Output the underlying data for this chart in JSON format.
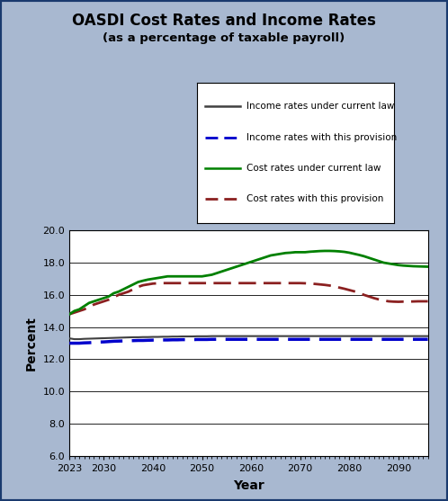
{
  "title": "OASDI Cost Rates and Income Rates",
  "subtitle": "(as a percentage of taxable payroll)",
  "xlabel": "Year",
  "ylabel": "Percent",
  "bg_color": "#a8b8d0",
  "plot_bg_color": "#ffffff",
  "border_color": "#1a3a6e",
  "ylim": [
    6.0,
    20.0
  ],
  "yticks": [
    6.0,
    8.0,
    10.0,
    12.0,
    14.0,
    16.0,
    18.0,
    20.0
  ],
  "xticks": [
    2023,
    2030,
    2040,
    2050,
    2060,
    2070,
    2080,
    2090
  ],
  "years": [
    2023,
    2024,
    2025,
    2026,
    2027,
    2028,
    2029,
    2030,
    2031,
    2032,
    2033,
    2034,
    2035,
    2036,
    2037,
    2038,
    2039,
    2040,
    2041,
    2042,
    2043,
    2044,
    2045,
    2046,
    2047,
    2048,
    2049,
    2050,
    2051,
    2052,
    2053,
    2054,
    2055,
    2056,
    2057,
    2058,
    2059,
    2060,
    2061,
    2062,
    2063,
    2064,
    2065,
    2066,
    2067,
    2068,
    2069,
    2070,
    2071,
    2072,
    2073,
    2074,
    2075,
    2076,
    2077,
    2078,
    2079,
    2080,
    2081,
    2082,
    2083,
    2084,
    2085,
    2086,
    2087,
    2088,
    2089,
    2090,
    2091,
    2092,
    2093,
    2094,
    2095,
    2096
  ],
  "income_current_law": [
    13.3,
    13.25,
    13.25,
    13.27,
    13.28,
    13.29,
    13.3,
    13.31,
    13.32,
    13.33,
    13.34,
    13.35,
    13.36,
    13.37,
    13.37,
    13.38,
    13.38,
    13.39,
    13.39,
    13.4,
    13.4,
    13.41,
    13.41,
    13.42,
    13.42,
    13.42,
    13.43,
    13.43,
    13.43,
    13.44,
    13.44,
    13.44,
    13.44,
    13.44,
    13.44,
    13.44,
    13.44,
    13.44,
    13.44,
    13.44,
    13.44,
    13.44,
    13.44,
    13.44,
    13.44,
    13.44,
    13.44,
    13.44,
    13.44,
    13.44,
    13.44,
    13.44,
    13.44,
    13.44,
    13.44,
    13.44,
    13.44,
    13.44,
    13.44,
    13.44,
    13.44,
    13.44,
    13.44,
    13.44,
    13.44,
    13.44,
    13.44,
    13.44,
    13.44,
    13.44,
    13.44,
    13.44,
    13.44,
    13.44
  ],
  "income_provision": [
    13.0,
    13.0,
    13.0,
    13.02,
    13.03,
    13.05,
    13.07,
    13.08,
    13.1,
    13.12,
    13.13,
    13.14,
    13.15,
    13.16,
    13.17,
    13.17,
    13.18,
    13.19,
    13.19,
    13.2,
    13.2,
    13.21,
    13.21,
    13.22,
    13.22,
    13.22,
    13.23,
    13.23,
    13.23,
    13.24,
    13.24,
    13.24,
    13.24,
    13.24,
    13.24,
    13.24,
    13.24,
    13.24,
    13.24,
    13.24,
    13.24,
    13.24,
    13.24,
    13.24,
    13.24,
    13.24,
    13.24,
    13.24,
    13.24,
    13.24,
    13.24,
    13.24,
    13.24,
    13.24,
    13.24,
    13.24,
    13.24,
    13.24,
    13.24,
    13.24,
    13.24,
    13.24,
    13.24,
    13.24,
    13.24,
    13.24,
    13.24,
    13.24,
    13.24,
    13.24,
    13.24,
    13.24,
    13.24,
    13.24
  ],
  "cost_current_law": [
    14.8,
    15.0,
    15.1,
    15.3,
    15.5,
    15.6,
    15.7,
    15.8,
    15.9,
    16.1,
    16.2,
    16.35,
    16.5,
    16.65,
    16.8,
    16.88,
    16.95,
    17.0,
    17.05,
    17.1,
    17.15,
    17.15,
    17.15,
    17.15,
    17.15,
    17.15,
    17.15,
    17.15,
    17.2,
    17.25,
    17.35,
    17.45,
    17.55,
    17.65,
    17.75,
    17.85,
    17.95,
    18.05,
    18.15,
    18.25,
    18.35,
    18.45,
    18.5,
    18.55,
    18.6,
    18.62,
    18.65,
    18.65,
    18.65,
    18.68,
    18.7,
    18.72,
    18.73,
    18.73,
    18.72,
    18.7,
    18.67,
    18.62,
    18.55,
    18.48,
    18.4,
    18.3,
    18.2,
    18.1,
    18.0,
    17.95,
    17.9,
    17.85,
    17.82,
    17.8,
    17.78,
    17.77,
    17.76,
    17.75
  ],
  "cost_provision": [
    14.8,
    14.9,
    15.0,
    15.1,
    15.25,
    15.4,
    15.5,
    15.6,
    15.7,
    15.85,
    16.0,
    16.1,
    16.2,
    16.35,
    16.5,
    16.6,
    16.65,
    16.7,
    16.72,
    16.73,
    16.73,
    16.73,
    16.73,
    16.73,
    16.73,
    16.73,
    16.73,
    16.73,
    16.73,
    16.73,
    16.73,
    16.73,
    16.73,
    16.73,
    16.73,
    16.73,
    16.73,
    16.73,
    16.73,
    16.73,
    16.73,
    16.73,
    16.73,
    16.73,
    16.73,
    16.73,
    16.73,
    16.73,
    16.72,
    16.7,
    16.68,
    16.65,
    16.62,
    16.58,
    16.52,
    16.45,
    16.38,
    16.3,
    16.22,
    16.12,
    16.0,
    15.9,
    15.8,
    15.72,
    15.65,
    15.6,
    15.58,
    15.57,
    15.58,
    15.58,
    15.59,
    15.6,
    15.6,
    15.6
  ],
  "color_income_current": "#404040",
  "color_income_provision": "#0000cc",
  "color_cost_current": "#008000",
  "color_cost_provision": "#8b2020"
}
